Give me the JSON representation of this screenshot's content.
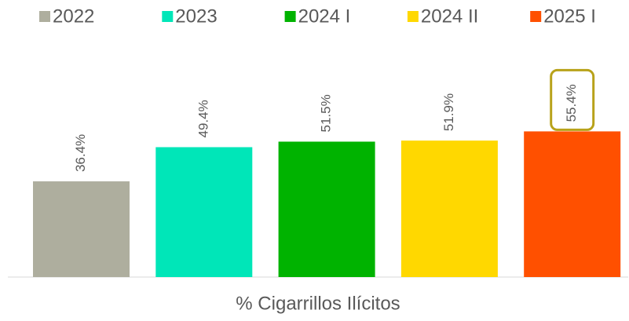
{
  "chart_data": {
    "type": "bar",
    "categories": [
      "% Cigarrillos Ilícitos"
    ],
    "series": [
      {
        "name": "2022",
        "color": "#aeae9e",
        "values": [
          36.4
        ],
        "value_labels": [
          "36.4%"
        ]
      },
      {
        "name": "2023",
        "color": "#00e6b8",
        "values": [
          49.4
        ],
        "value_labels": [
          "49.4%"
        ]
      },
      {
        "name": "2024 I",
        "color": "#00b300",
        "values": [
          51.5
        ],
        "value_labels": [
          "51.5%"
        ]
      },
      {
        "name": "2024 II",
        "color": "#ffd800",
        "values": [
          51.9
        ],
        "value_labels": [
          "51.9%"
        ]
      },
      {
        "name": "2025 I",
        "color": "#ff5000",
        "values": [
          55.4
        ],
        "value_labels": [
          "55.4%"
        ],
        "highlight": true
      }
    ],
    "ylim": [
      0,
      80
    ],
    "legend": "top",
    "highlight_color": "#b8a21a"
  }
}
